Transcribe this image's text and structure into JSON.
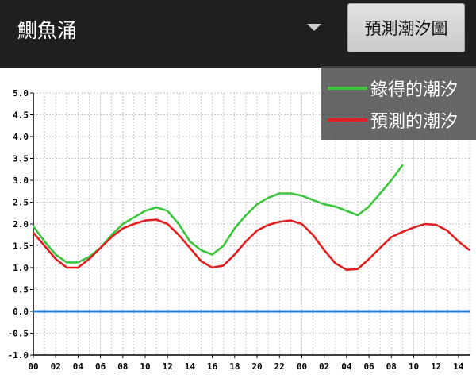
{
  "header": {
    "station": "鰂魚涌",
    "predict_button": "預測潮汐圖"
  },
  "legend": {
    "observed": "錄得的潮汐",
    "predicted": "預測的潮汐"
  },
  "colors": {
    "observed": "#3ec43e",
    "predicted": "#e02020",
    "zero_line": "#1f7fd6"
  },
  "chart_data": {
    "type": "line",
    "ylim": [
      -1.0,
      5.0
    ],
    "y_ticks": [
      "5.0",
      "4.5",
      "4.0",
      "3.5",
      "3.0",
      "2.5",
      "2.0",
      "1.5",
      "1.0",
      "0.5",
      "0.0",
      "-0.5",
      "-1.0"
    ],
    "x_range_hours": [
      0,
      39
    ],
    "x_ticks": [
      "00",
      "02",
      "04",
      "06",
      "08",
      "10",
      "12",
      "14",
      "16",
      "18",
      "20",
      "22",
      "00",
      "02",
      "04",
      "06",
      "08",
      "10",
      "12",
      "14"
    ],
    "grid": true,
    "legend_position": "top-right",
    "series": [
      {
        "name": "錄得的潮汐",
        "key": "observed",
        "x": [
          0,
          1,
          2,
          3,
          4,
          5,
          6,
          7,
          8,
          9,
          10,
          11,
          12,
          13,
          14,
          15,
          16,
          17,
          18,
          19,
          20,
          21,
          22,
          23,
          24,
          25,
          26,
          27,
          28,
          29,
          30,
          31,
          32,
          33
        ],
        "y": [
          1.95,
          1.6,
          1.3,
          1.12,
          1.12,
          1.25,
          1.45,
          1.75,
          2.0,
          2.15,
          2.3,
          2.38,
          2.3,
          2.0,
          1.6,
          1.4,
          1.3,
          1.5,
          1.9,
          2.2,
          2.45,
          2.6,
          2.7,
          2.7,
          2.65,
          2.55,
          2.45,
          2.4,
          2.3,
          2.2,
          2.4,
          2.7,
          3.0,
          3.35
        ]
      },
      {
        "name": "預測的潮汐",
        "key": "predicted",
        "x": [
          0,
          1,
          2,
          3,
          4,
          5,
          6,
          7,
          8,
          9,
          10,
          11,
          12,
          13,
          14,
          15,
          16,
          17,
          18,
          19,
          20,
          21,
          22,
          23,
          24,
          25,
          26,
          27,
          28,
          29,
          30,
          31,
          32,
          33,
          34,
          35,
          36,
          37,
          38,
          39
        ],
        "y": [
          1.8,
          1.5,
          1.2,
          1.0,
          1.0,
          1.2,
          1.45,
          1.7,
          1.9,
          2.0,
          2.08,
          2.1,
          2.0,
          1.75,
          1.45,
          1.15,
          1.0,
          1.05,
          1.3,
          1.6,
          1.85,
          1.98,
          2.05,
          2.08,
          2.0,
          1.75,
          1.4,
          1.1,
          0.95,
          0.97,
          1.2,
          1.45,
          1.7,
          1.82,
          1.92,
          2.0,
          1.98,
          1.85,
          1.6,
          1.4
        ]
      }
    ]
  }
}
